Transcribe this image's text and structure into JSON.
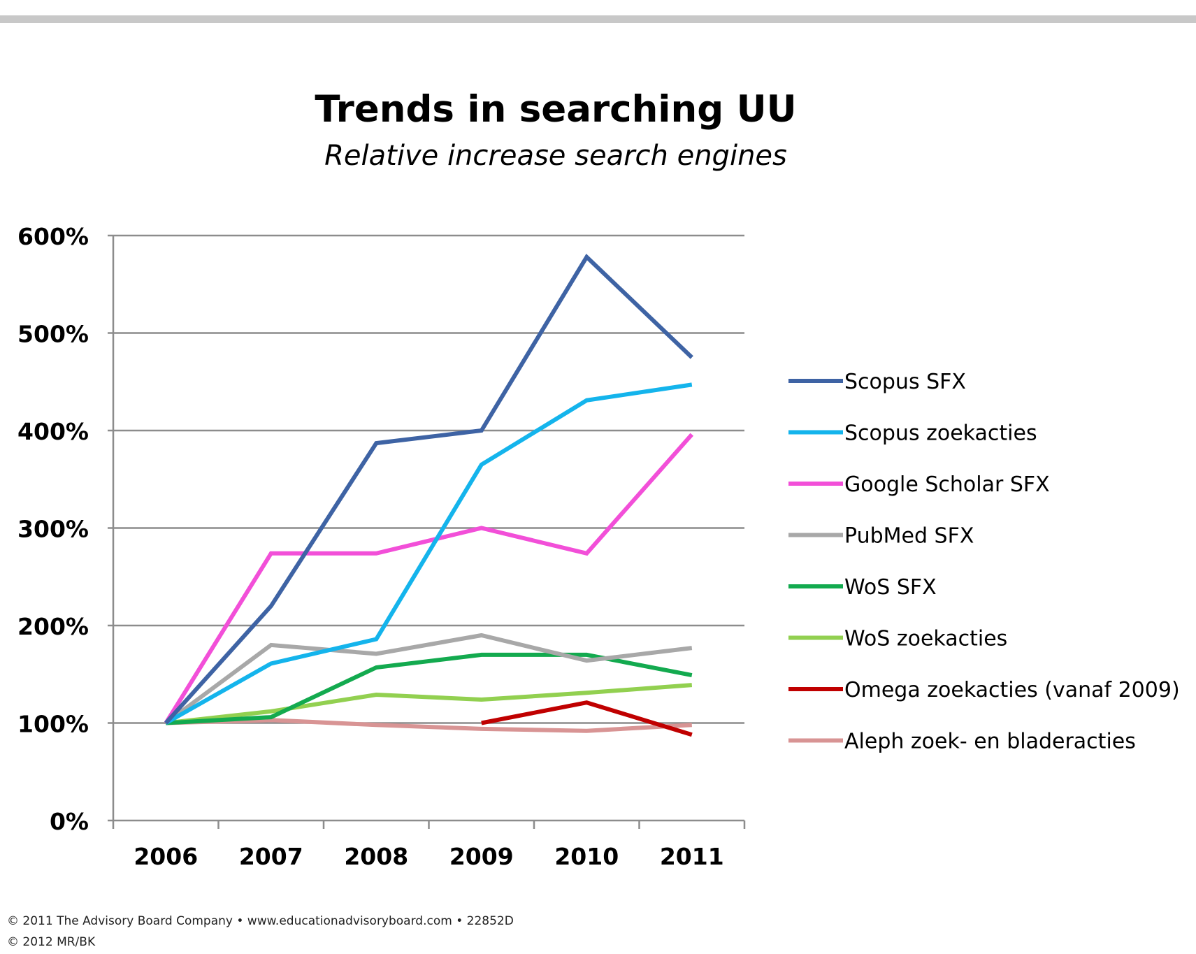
{
  "slide": {
    "title": "Trends in searching UU",
    "subtitle": "Relative increase search engines",
    "footer_line1": "© 2011 The Advisory Board Company • www.educationadvisoryboard.com  •  22852D",
    "footer_line2": "© 2012 MR/BK"
  },
  "chart_data": {
    "type": "line",
    "title": "Trends in searching UU",
    "subtitle": "Relative increase search engines",
    "xlabel": "",
    "ylabel": "",
    "categories": [
      "2006",
      "2007",
      "2008",
      "2009",
      "2010",
      "2011"
    ],
    "ylim": [
      0,
      600
    ],
    "yticks": [
      0,
      100,
      200,
      300,
      400,
      500,
      600
    ],
    "ytick_suffix": "%",
    "grid": true,
    "legend_position": "right",
    "series": [
      {
        "name": "Scopus SFX",
        "color": "#3E63A4",
        "values": [
          100,
          220,
          387,
          400,
          578,
          475
        ]
      },
      {
        "name": "Scopus zoekacties",
        "color": "#14B4EC",
        "values": [
          100,
          161,
          186,
          365,
          431,
          447
        ]
      },
      {
        "name": "Google Scholar SFX",
        "color": "#F24FD8",
        "values": [
          100,
          274,
          274,
          300,
          274,
          396
        ]
      },
      {
        "name": "PubMed SFX",
        "color": "#A8A8A8",
        "values": [
          100,
          180,
          171,
          190,
          164,
          177
        ]
      },
      {
        "name": "WoS SFX",
        "color": "#13AA4F",
        "values": [
          100,
          106,
          157,
          170,
          170,
          149
        ]
      },
      {
        "name": "WoS zoekacties",
        "color": "#92D050",
        "values": [
          100,
          112,
          129,
          124,
          131,
          139
        ]
      },
      {
        "name": "Omega zoekacties (vanaf 2009)",
        "color": "#C00000",
        "values": [
          null,
          null,
          null,
          100,
          121,
          88
        ]
      },
      {
        "name": "Aleph zoek- en bladeracties",
        "color": "#D89494",
        "values": [
          100,
          103,
          98,
          94,
          92,
          98
        ]
      }
    ]
  }
}
